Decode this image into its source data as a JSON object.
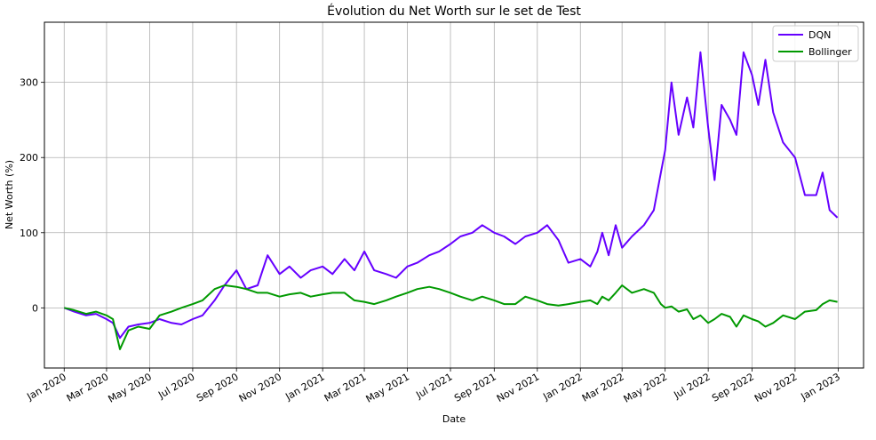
{
  "chart_data": {
    "type": "line",
    "title": "Évolution du Net Worth sur le set de Test",
    "xlabel": "Date",
    "ylabel": "Net Worth (%)",
    "x_ticks": [
      "Jan 2020",
      "Mar 2020",
      "May 2020",
      "Jul 2020",
      "Sep 2020",
      "Nov 2020",
      "Jan 2021",
      "Mar 2021",
      "May 2021",
      "Jul 2021",
      "Sep 2021",
      "Nov 2021",
      "Jan 2022",
      "Mar 2022",
      "May 2022",
      "Jul 2022",
      "Sep 2022",
      "Nov 2022",
      "Jan 2023"
    ],
    "y_ticks": [
      0,
      100,
      200,
      300
    ],
    "xlim": [
      "2019-12-04",
      "2023-02-06"
    ],
    "ylim": [
      -80,
      380
    ],
    "grid": true,
    "legend": "top-right",
    "x": [
      "2020-01-01",
      "2020-01-15",
      "2020-02-01",
      "2020-02-15",
      "2020-03-01",
      "2020-03-10",
      "2020-03-20",
      "2020-04-01",
      "2020-04-15",
      "2020-05-01",
      "2020-05-15",
      "2020-06-01",
      "2020-06-15",
      "2020-07-01",
      "2020-07-15",
      "2020-08-01",
      "2020-08-15",
      "2020-09-01",
      "2020-09-15",
      "2020-10-01",
      "2020-10-15",
      "2020-11-01",
      "2020-11-15",
      "2020-12-01",
      "2020-12-15",
      "2021-01-01",
      "2021-01-15",
      "2021-02-01",
      "2021-02-15",
      "2021-03-01",
      "2021-03-15",
      "2021-04-01",
      "2021-04-15",
      "2021-05-01",
      "2021-05-15",
      "2021-06-01",
      "2021-06-15",
      "2021-07-01",
      "2021-07-15",
      "2021-08-01",
      "2021-08-15",
      "2021-09-01",
      "2021-09-15",
      "2021-10-01",
      "2021-10-15",
      "2021-11-01",
      "2021-11-15",
      "2021-12-01",
      "2021-12-15",
      "2022-01-01",
      "2022-01-15",
      "2022-01-25",
      "2022-02-01",
      "2022-02-10",
      "2022-02-20",
      "2022-03-01",
      "2022-03-15",
      "2022-04-01",
      "2022-04-15",
      "2022-04-25",
      "2022-05-01",
      "2022-05-10",
      "2022-05-20",
      "2022-06-01",
      "2022-06-10",
      "2022-06-20",
      "2022-07-01",
      "2022-07-10",
      "2022-07-20",
      "2022-08-01",
      "2022-08-10",
      "2022-08-20",
      "2022-09-01",
      "2022-09-10",
      "2022-09-20",
      "2022-10-01",
      "2022-10-15",
      "2022-11-01",
      "2022-11-15",
      "2022-12-01",
      "2022-12-10",
      "2022-12-20",
      "2022-12-31"
    ],
    "series": [
      {
        "name": "DQN",
        "color": "#6600ff",
        "values": [
          0,
          -5,
          -10,
          -8,
          -15,
          -20,
          -40,
          -25,
          -22,
          -20,
          -15,
          -20,
          -22,
          -15,
          -10,
          10,
          30,
          50,
          25,
          30,
          70,
          45,
          55,
          40,
          50,
          55,
          45,
          65,
          50,
          75,
          50,
          45,
          40,
          55,
          60,
          70,
          75,
          85,
          95,
          100,
          110,
          100,
          95,
          85,
          95,
          100,
          110,
          90,
          60,
          65,
          55,
          75,
          100,
          70,
          110,
          80,
          95,
          110,
          130,
          180,
          210,
          300,
          230,
          280,
          240,
          340,
          240,
          170,
          270,
          250,
          230,
          340,
          310,
          270,
          330,
          260,
          220,
          200,
          150,
          150,
          180,
          130,
          120
        ]
      },
      {
        "name": "Bollinger",
        "color": "#009900",
        "values": [
          0,
          -3,
          -8,
          -5,
          -10,
          -15,
          -55,
          -30,
          -25,
          -28,
          -10,
          -5,
          0,
          5,
          10,
          25,
          30,
          28,
          25,
          20,
          20,
          15,
          18,
          20,
          15,
          18,
          20,
          20,
          10,
          8,
          5,
          10,
          15,
          20,
          25,
          28,
          25,
          20,
          15,
          10,
          15,
          10,
          5,
          5,
          15,
          10,
          5,
          3,
          5,
          8,
          10,
          5,
          15,
          10,
          20,
          30,
          20,
          25,
          20,
          5,
          0,
          2,
          -5,
          -2,
          -15,
          -10,
          -20,
          -15,
          -8,
          -12,
          -25,
          -10,
          -15,
          -18,
          -25,
          -20,
          -10,
          -15,
          -5,
          -3,
          5,
          10,
          8
        ]
      }
    ]
  }
}
